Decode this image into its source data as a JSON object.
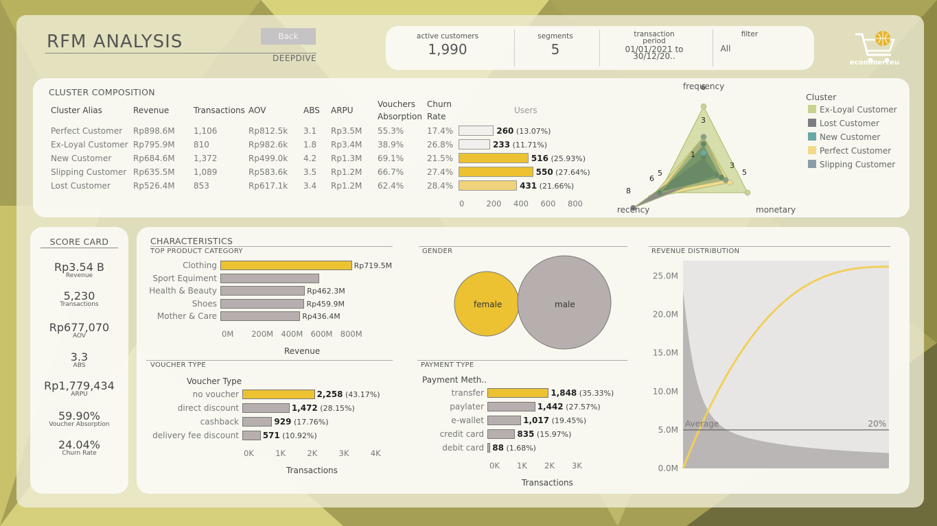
{
  "header": {
    "title": "RFM ANALYSIS",
    "back_label": "Back",
    "subtitle": "DEEPDIVE",
    "kpis": {
      "active_customers_label": "active customers",
      "active_customers_value": "1,990",
      "segments_label": "segments",
      "segments_value": "5",
      "period_label_1": "transaction",
      "period_label_2": "period",
      "period_value": "01/01/2021 to 30/12/20..",
      "filter_label": "filter",
      "filter_value": "All"
    },
    "logo_text": "ecommerceu"
  },
  "colors": {
    "accent_yellow": "#ecc232",
    "grey_bar": "#b7afae",
    "light_bar": "#f2f0ec",
    "ex_loyal": "#c8d38e",
    "lost": "#7b7d80",
    "new": "#6aa8a8",
    "perfect": "#f5d98a",
    "slipping": "#8a9da6"
  },
  "cluster": {
    "title": "CLUSTER COMPOSITION",
    "headers": {
      "alias": "Cluster Alias",
      "revenue": "Revenue",
      "transactions": "Transactions",
      "aov": "AOV",
      "abs": "ABS",
      "arpu": "ARPU",
      "vouchers_1": "Vouchers",
      "vouchers_2": "Absorption",
      "churn_1": "Churn",
      "churn_2": "Rate",
      "users": "Users"
    },
    "rows": [
      {
        "alias": "Perfect Customer",
        "revenue": "Rp898.6M",
        "transactions": "1,106",
        "aov": "Rp812.5k",
        "abs": "3.1",
        "arpu": "Rp3.5M",
        "vouchers": "55.3%",
        "churn": "17.4%",
        "users": 260,
        "users_label": "260",
        "users_pct": "(13.07%)",
        "color": "#f2f0ec"
      },
      {
        "alias": "Ex-Loyal Customer",
        "revenue": "Rp795.9M",
        "transactions": "810",
        "aov": "Rp982.6k",
        "abs": "1.8",
        "arpu": "Rp3.4M",
        "vouchers": "38.9%",
        "churn": "26.8%",
        "users": 233,
        "users_label": "233",
        "users_pct": "(11.71%)",
        "color": "#f2f0ec"
      },
      {
        "alias": "New Customer",
        "revenue": "Rp684.6M",
        "transactions": "1,372",
        "aov": "Rp499.0k",
        "abs": "4.2",
        "arpu": "Rp1.3M",
        "vouchers": "69.1%",
        "churn": "21.5%",
        "users": 516,
        "users_label": "516",
        "users_pct": "(25.93%)",
        "color": "#ecc232"
      },
      {
        "alias": "Slipping Customer",
        "revenue": "Rp635.5M",
        "transactions": "1,089",
        "aov": "Rp583.6k",
        "abs": "3.5",
        "arpu": "Rp1.2M",
        "vouchers": "66.7%",
        "churn": "27.4%",
        "users": 550,
        "users_label": "550",
        "users_pct": "(27.64%)",
        "color": "#ecc232"
      },
      {
        "alias": "Lost Customer",
        "revenue": "Rp526.4M",
        "transactions": "853",
        "aov": "Rp617.1k",
        "abs": "3.4",
        "arpu": "Rp1.2M",
        "vouchers": "62.4%",
        "churn": "28.4%",
        "users": 431,
        "users_label": "431",
        "users_pct": "(21.66%)",
        "color": "#f0d27a"
      }
    ],
    "users_axis": [
      "0",
      "200",
      "400",
      "600",
      "800"
    ],
    "users_max": 800
  },
  "radar": {
    "axes": {
      "top": "frequency",
      "left": "recency",
      "right": "monetary"
    },
    "labels": [
      "6",
      "3",
      "1",
      "3",
      "5",
      "8",
      "6",
      "5"
    ],
    "max": 8
  },
  "legend": {
    "title": "Cluster",
    "items": [
      {
        "label": "Ex-Loyal Customer",
        "color": "#c8d38e"
      },
      {
        "label": "Lost Customer",
        "color": "#7b7d80"
      },
      {
        "label": "New Customer",
        "color": "#6aa8a8"
      },
      {
        "label": "Perfect Customer",
        "color": "#f5d98a"
      },
      {
        "label": "Slipping Customer",
        "color": "#8a9da6"
      }
    ]
  },
  "scorecard": {
    "title": "SCORE CARD",
    "items": [
      {
        "value": "Rp3.54 B",
        "label": "Revenue"
      },
      {
        "value": "5,230",
        "label": "Transactions"
      },
      {
        "value": "Rp677,070",
        "label": "AOV"
      },
      {
        "value": "3.3",
        "label": "ABS"
      },
      {
        "value": "Rp1,779,434",
        "label": "ARPU"
      },
      {
        "value": "59.90%",
        "label": "Voucher Absorption"
      },
      {
        "value": "24.04%",
        "label": "Churn Rate"
      }
    ]
  },
  "characteristics": {
    "title": "CHARACTERISTICS",
    "gender_title": "GENDER",
    "gender": [
      {
        "label": "female"
      },
      {
        "label": "male"
      }
    ],
    "revdist_title": "REVENUE DISTRIBUTION",
    "revdist": {
      "ticks": [
        "25.0M",
        "20.0M",
        "15.0M",
        "10.0M",
        "5.0M",
        "0.0M"
      ],
      "ymax": 27,
      "average_label": "Average",
      "average_value": 5.0,
      "pct_label": "20%"
    }
  },
  "chart_data": [
    {
      "type": "bar",
      "title": "TOP PRODUCT CATEGORY",
      "xlabel": "Revenue",
      "categories": [
        "Clothing",
        "Sport Equiment",
        "Health & Beauty",
        "Shoes",
        "Mother & Care"
      ],
      "values": [
        719.5,
        540,
        462.3,
        459.9,
        436.4
      ],
      "labels": [
        "Rp719.5M",
        "",
        "Rp462.3M",
        "Rp459.9M",
        "Rp436.4M"
      ],
      "ticks": [
        "0M",
        "200M",
        "400M",
        "600M",
        "800M"
      ],
      "xlim": [
        0,
        800
      ]
    },
    {
      "type": "bar",
      "title": "VOUCHER TYPE",
      "category_header": "Voucher Type",
      "xlabel": "Transactions",
      "categories": [
        "no voucher",
        "direct discount",
        "cashback",
        "delivery fee discount"
      ],
      "values": [
        2258,
        1472,
        929,
        571
      ],
      "labels": [
        "2,258",
        "1,472",
        "929",
        "571"
      ],
      "pcts": [
        "(43.17%)",
        "(28.15%)",
        "(17.76%)",
        "(10.92%)"
      ],
      "ticks": [
        "0K",
        "1K",
        "2K",
        "3K",
        "4K"
      ],
      "xlim": [
        0,
        4000
      ]
    },
    {
      "type": "bar",
      "title": "PAYMENT TYPE",
      "category_header": "Payment Meth..",
      "xlabel": "Transactions",
      "categories": [
        "transfer",
        "paylater",
        "e-wallet",
        "credit card",
        "debit card"
      ],
      "values": [
        1848,
        1442,
        1017,
        835,
        88
      ],
      "labels": [
        "1,848",
        "1,442",
        "1,017",
        "835",
        "88"
      ],
      "pcts": [
        "(35.33%)",
        "(27.57%)",
        "(19.45%)",
        "(15.97%)",
        "(1.68%)"
      ],
      "ticks": [
        "0K",
        "1K",
        "2K",
        "3K"
      ],
      "xlim": [
        0,
        3000
      ]
    }
  ]
}
